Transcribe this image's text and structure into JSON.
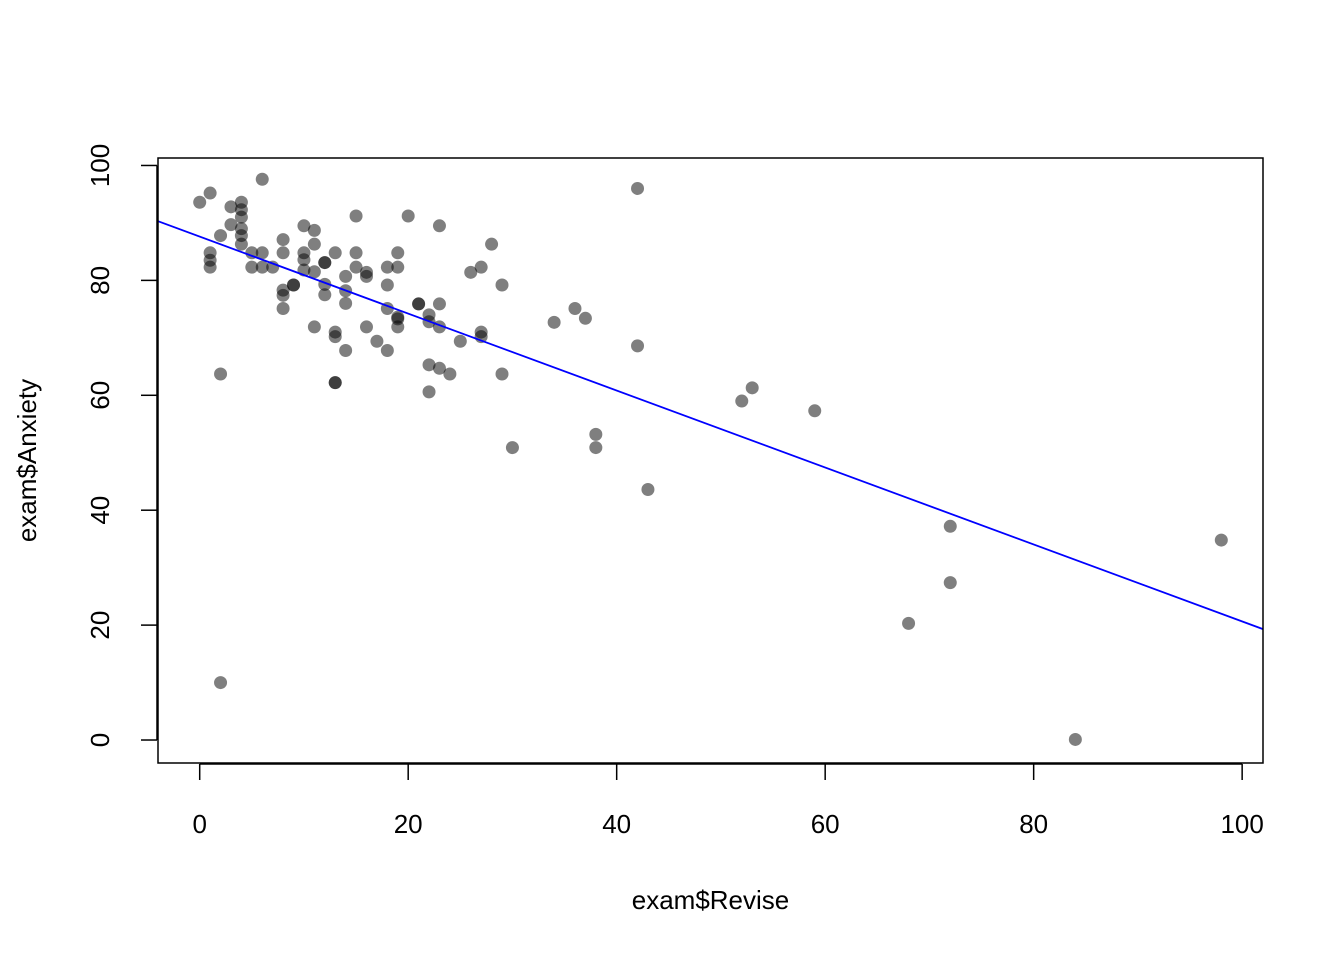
{
  "chart_data": {
    "type": "scatter",
    "title": "",
    "xlabel": "exam$Revise",
    "ylabel": "exam$Anxiety",
    "xlim": [
      -4,
      102
    ],
    "ylim": [
      -4,
      101.3
    ],
    "xticks": [
      0,
      20,
      40,
      60,
      80,
      100
    ],
    "yticks": [
      0,
      20,
      40,
      60,
      80,
      100
    ],
    "grid": false,
    "legend": "none",
    "point_color": "#000000",
    "point_opacity": 0.5,
    "fit_line": {
      "color": "#0000ff",
      "x": [
        -4,
        102
      ],
      "y": [
        90.3,
        19.3
      ]
    },
    "series": [
      {
        "points": [
          [
            0,
            93.6
          ],
          [
            1,
            95.2
          ],
          [
            1,
            84.8
          ],
          [
            1,
            83.5
          ],
          [
            1,
            82.3
          ],
          [
            2,
            87.8
          ],
          [
            2,
            63.7
          ],
          [
            2,
            10.0
          ],
          [
            3,
            92.8
          ],
          [
            3,
            89.7
          ],
          [
            4,
            93.6
          ],
          [
            4,
            92.3
          ],
          [
            4,
            91.0
          ],
          [
            4,
            89.0
          ],
          [
            4,
            87.8
          ],
          [
            4,
            86.3
          ],
          [
            5,
            84.8
          ],
          [
            5,
            82.3
          ],
          [
            6,
            97.6
          ],
          [
            6,
            84.8
          ],
          [
            6,
            82.3
          ],
          [
            7,
            82.3
          ],
          [
            8,
            87.1
          ],
          [
            8,
            84.8
          ],
          [
            8,
            78.3
          ],
          [
            8,
            77.4
          ],
          [
            8,
            75.1
          ],
          [
            9,
            79.2
          ],
          [
            9,
            79.2
          ],
          [
            10,
            89.5
          ],
          [
            10,
            84.8
          ],
          [
            10,
            83.6
          ],
          [
            10,
            81.8
          ],
          [
            11,
            88.7
          ],
          [
            11,
            86.3
          ],
          [
            11,
            81.5
          ],
          [
            11,
            71.9
          ],
          [
            12,
            83.1
          ],
          [
            12,
            83.1
          ],
          [
            12,
            79.3
          ],
          [
            12,
            77.5
          ],
          [
            13,
            84.8
          ],
          [
            13,
            71.0
          ],
          [
            13,
            70.2
          ],
          [
            13,
            62.2
          ],
          [
            13,
            62.2
          ],
          [
            14,
            80.7
          ],
          [
            14,
            78.2
          ],
          [
            14,
            76.0
          ],
          [
            14,
            67.8
          ],
          [
            15,
            91.2
          ],
          [
            15,
            84.8
          ],
          [
            15,
            82.3
          ],
          [
            16,
            81.4
          ],
          [
            16,
            80.7
          ],
          [
            16,
            71.9
          ],
          [
            17,
            69.4
          ],
          [
            18,
            82.3
          ],
          [
            18,
            79.2
          ],
          [
            18,
            75.1
          ],
          [
            18,
            67.8
          ],
          [
            19,
            84.8
          ],
          [
            19,
            82.3
          ],
          [
            19,
            73.6
          ],
          [
            19,
            73.3
          ],
          [
            19,
            71.9
          ],
          [
            20,
            91.2
          ],
          [
            21,
            75.9
          ],
          [
            21,
            75.9
          ],
          [
            22,
            74.0
          ],
          [
            22,
            72.8
          ],
          [
            22,
            65.3
          ],
          [
            22,
            60.6
          ],
          [
            23,
            89.5
          ],
          [
            23,
            75.9
          ],
          [
            23,
            71.9
          ],
          [
            23,
            64.7
          ],
          [
            24,
            63.7
          ],
          [
            25,
            69.4
          ],
          [
            26,
            81.4
          ],
          [
            27,
            82.3
          ],
          [
            27,
            71.0
          ],
          [
            27,
            70.2
          ],
          [
            28,
            86.3
          ],
          [
            29,
            79.2
          ],
          [
            29,
            63.7
          ],
          [
            30,
            50.9
          ],
          [
            34,
            72.7
          ],
          [
            36,
            75.1
          ],
          [
            37,
            73.4
          ],
          [
            38,
            53.2
          ],
          [
            38,
            50.9
          ],
          [
            42,
            96.0
          ],
          [
            42,
            68.6
          ],
          [
            43,
            43.6
          ],
          [
            52,
            59.0
          ],
          [
            53,
            61.3
          ],
          [
            59,
            57.3
          ],
          [
            68,
            20.3
          ],
          [
            72,
            37.2
          ],
          [
            72,
            27.4
          ],
          [
            84,
            0.1
          ],
          [
            98,
            34.8
          ]
        ]
      }
    ]
  }
}
